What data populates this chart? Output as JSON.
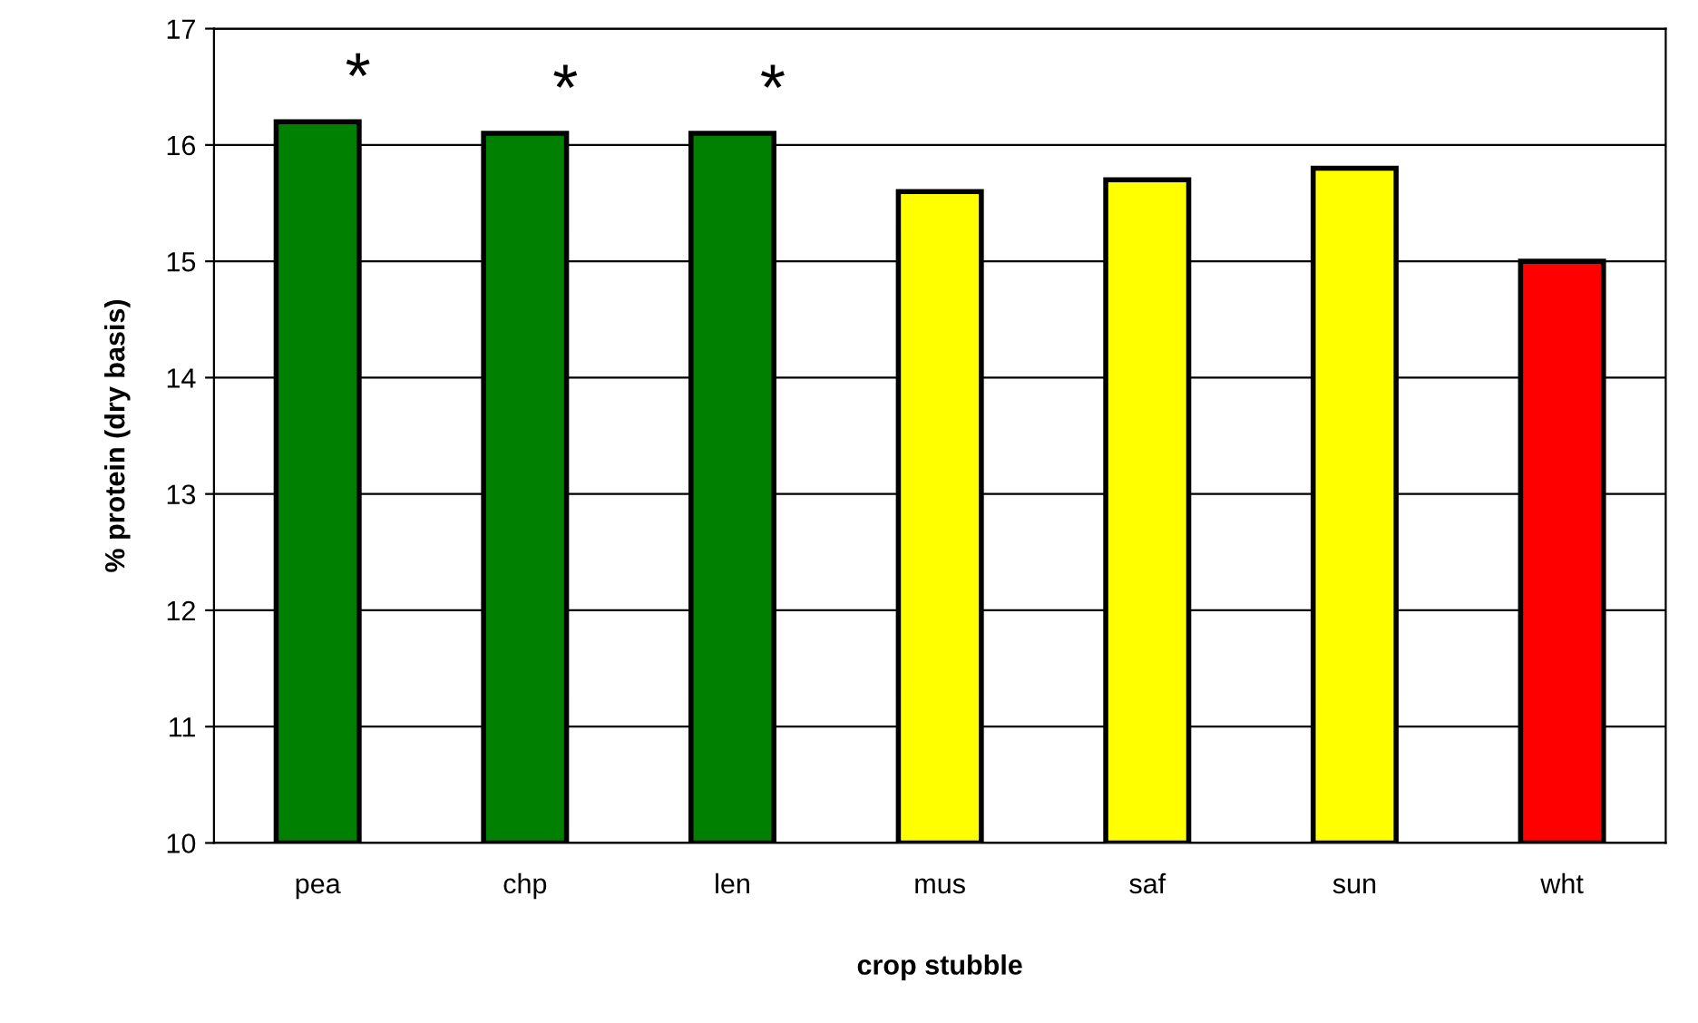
{
  "chart_data": {
    "type": "bar",
    "xlabel": "crop stubble",
    "ylabel": "% protein (dry basis)",
    "categories": [
      "pea",
      "chp",
      "len",
      "mus",
      "saf",
      "sun",
      "wht"
    ],
    "values": [
      16.2,
      16.1,
      16.1,
      15.6,
      15.7,
      15.8,
      15.0
    ],
    "colors": [
      "#008000",
      "#008000",
      "#008000",
      "#ffff00",
      "#ffff00",
      "#ffff00",
      "#ff0000"
    ],
    "ylim": [
      10,
      17
    ],
    "yticks": [
      10,
      11,
      12,
      13,
      14,
      15,
      16,
      17
    ],
    "grid": "y",
    "annotations": [
      "*",
      "*",
      "*"
    ]
  }
}
